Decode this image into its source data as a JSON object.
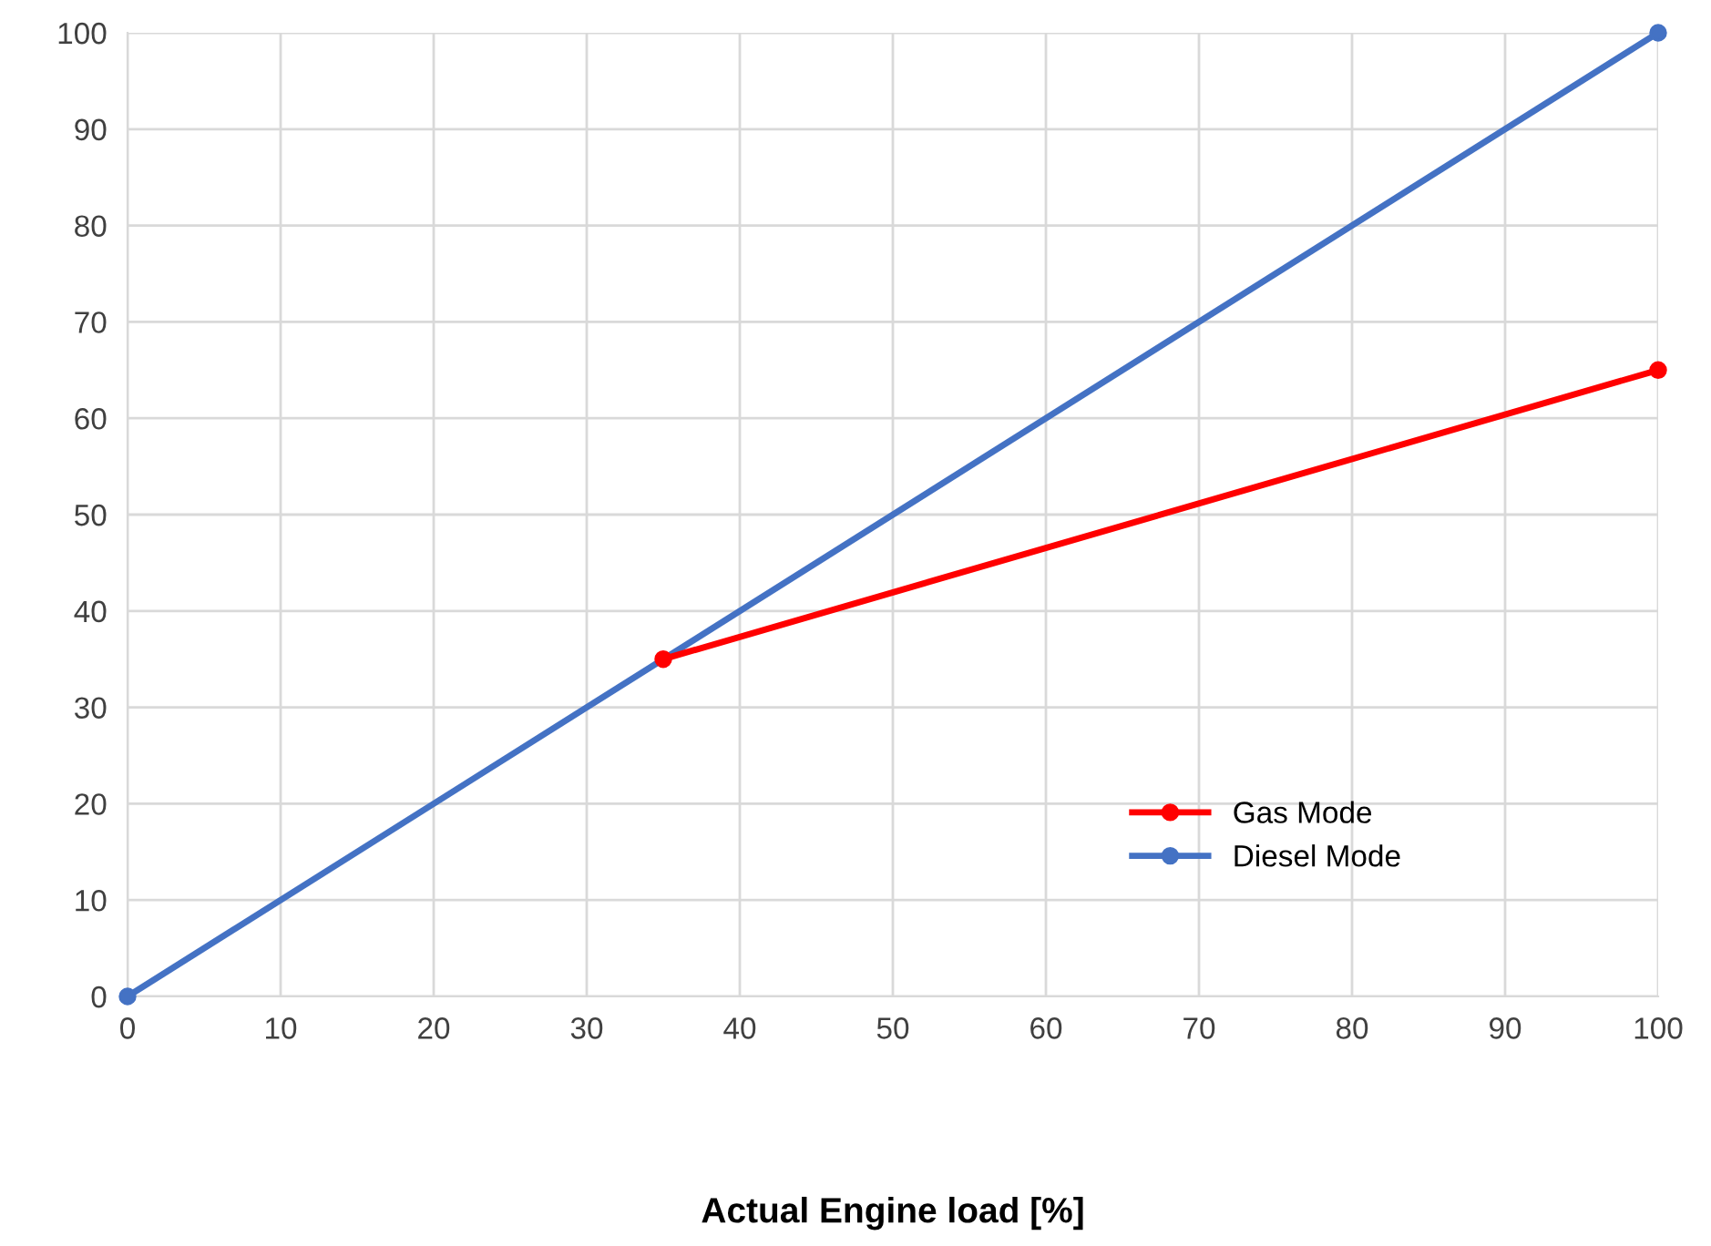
{
  "chart_data": {
    "type": "line",
    "xlabel": "Actual Engine load [%]",
    "xlim": [
      0,
      100
    ],
    "xticks": [
      0,
      10,
      20,
      30,
      40,
      50,
      60,
      70,
      80,
      90,
      100
    ],
    "ylim": [
      0,
      100
    ],
    "yticks": [
      0,
      10,
      20,
      30,
      40,
      50,
      60,
      70,
      80,
      90,
      100
    ],
    "grid": true,
    "legend": "bottom right",
    "marker": "circle",
    "line_style": "solid",
    "series": [
      {
        "name": "Diesel Mode",
        "color": "#4472c4",
        "x": [
          0,
          100
        ],
        "values": [
          0,
          100
        ]
      },
      {
        "name": "Gas Mode",
        "color": "#ff0000",
        "x": [
          35,
          100
        ],
        "values": [
          35,
          65
        ]
      }
    ]
  }
}
